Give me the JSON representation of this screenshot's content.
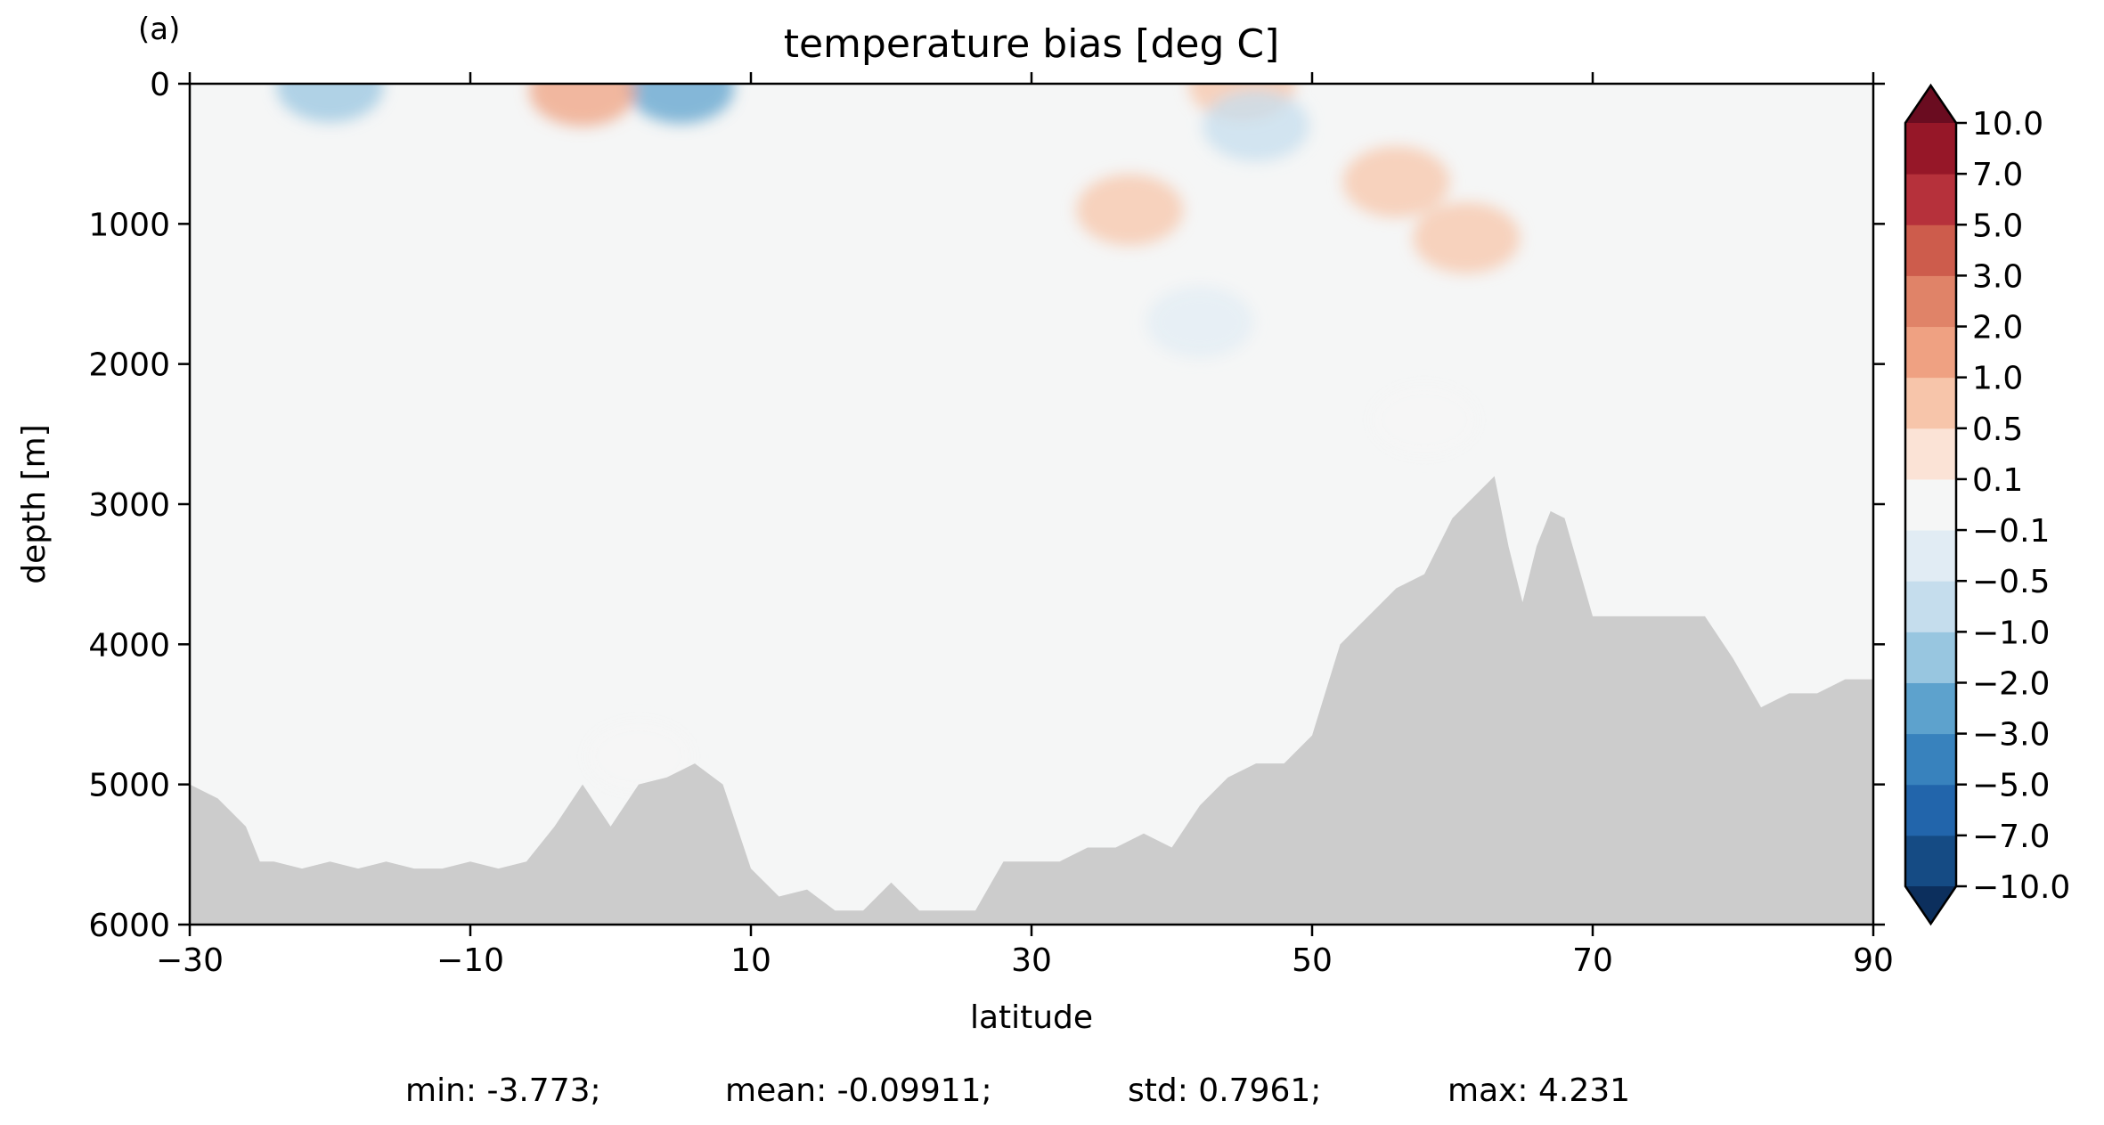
{
  "panel_label": "(a)",
  "chart_data": {
    "type": "heatmap",
    "title": "temperature bias [deg C]",
    "xlabel": "latitude",
    "ylabel": "depth [m]",
    "xlim": [
      -30,
      90
    ],
    "ylim": [
      6000,
      0
    ],
    "x_ticks": [
      -30,
      -10,
      10,
      30,
      50,
      70,
      90
    ],
    "x_tick_labels": [
      "−30",
      "−10",
      "10",
      "30",
      "50",
      "70",
      "90"
    ],
    "y_ticks": [
      0,
      1000,
      2000,
      3000,
      4000,
      5000,
      6000
    ],
    "y_tick_labels": [
      "0",
      "1000",
      "2000",
      "3000",
      "4000",
      "5000",
      "6000"
    ],
    "colorbar": {
      "levels": [
        -10,
        -7,
        -5,
        -3,
        -2,
        -1,
        -0.5,
        -0.1,
        0.1,
        0.5,
        1,
        2,
        3,
        5,
        7,
        10
      ],
      "tick_labels": [
        "−10.0",
        "−7.0",
        "−5.0",
        "−3.0",
        "−2.0",
        "−1.0",
        "−0.5",
        "−0.1",
        "0.1",
        "0.5",
        "1.0",
        "2.0",
        "3.0",
        "5.0",
        "7.0",
        "10.0"
      ],
      "colors": [
        "#154b84",
        "#2265ab",
        "#3882bd",
        "#5da2cd",
        "#98c6e0",
        "#c5dded",
        "#e1ecf4",
        "#f5f6f6",
        "#fbe3d6",
        "#f7c5aa",
        "#efa182",
        "#e08368",
        "#cd5c4c",
        "#b6313b",
        "#961728"
      ],
      "under_color": "#0c2f5d",
      "over_color": "#6a0c20",
      "extend": "both"
    },
    "background_color": "#f5f6f6",
    "land_color": "#cccccc",
    "bathymetry": {
      "lat": [
        -30,
        -28,
        -26,
        -25,
        -24,
        -22,
        -20,
        -18,
        -16,
        -14,
        -12,
        -10,
        -8,
        -6,
        -4,
        -2,
        0,
        2,
        4,
        6,
        8,
        10,
        12,
        14,
        16,
        18,
        20,
        22,
        24,
        26,
        28,
        30,
        32,
        34,
        36,
        38,
        40,
        42,
        44,
        46,
        48,
        50,
        52,
        54,
        56,
        58,
        60,
        62,
        63,
        64,
        65,
        66,
        67,
        68,
        70,
        72,
        74,
        76,
        78,
        80,
        82,
        84,
        86,
        88,
        90
      ],
      "depth": [
        5000,
        5100,
        5300,
        5550,
        5550,
        5600,
        5550,
        5600,
        5550,
        5600,
        5600,
        5550,
        5600,
        5550,
        5300,
        5000,
        5300,
        5000,
        4950,
        4850,
        5000,
        5600,
        5800,
        5750,
        5900,
        5900,
        5700,
        5900,
        5900,
        5900,
        5550,
        5550,
        5550,
        5450,
        5450,
        5350,
        5450,
        5150,
        4950,
        4850,
        4850,
        4650,
        4000,
        3800,
        3600,
        3500,
        3100,
        2900,
        2800,
        3300,
        3700,
        3300,
        3050,
        3100,
        3800,
        3800,
        3800,
        3800,
        3800,
        4100,
        4450,
        4350,
        4350,
        4250,
        4250
      ]
    },
    "anomalies": [
      {
        "lat": 45,
        "depth": 10,
        "value": 1.0
      },
      {
        "lat": -20,
        "depth": 20,
        "value": -1.0
      },
      {
        "lat": 5,
        "depth": 30,
        "value": -2.0
      },
      {
        "lat": -2,
        "depth": 50,
        "value": 2.0
      },
      {
        "lat": 37,
        "depth": 900,
        "value": 1.0
      },
      {
        "lat": 56,
        "depth": 700,
        "value": 1.0
      },
      {
        "lat": 61,
        "depth": 1100,
        "value": 1.0
      },
      {
        "lat": 46,
        "depth": 300,
        "value": -0.5
      },
      {
        "lat": 42,
        "depth": 1700,
        "value": -0.1
      },
      {
        "lat": 58,
        "depth": 2400,
        "value": 0.1
      },
      {
        "lat": 2,
        "depth": 4800,
        "value": 0.1
      }
    ],
    "stats": {
      "min_text": "min: -3.773;",
      "mean_text": "mean: -0.09911;",
      "std_text": "std: 0.7961;",
      "max_text": "max: 4.231"
    }
  }
}
